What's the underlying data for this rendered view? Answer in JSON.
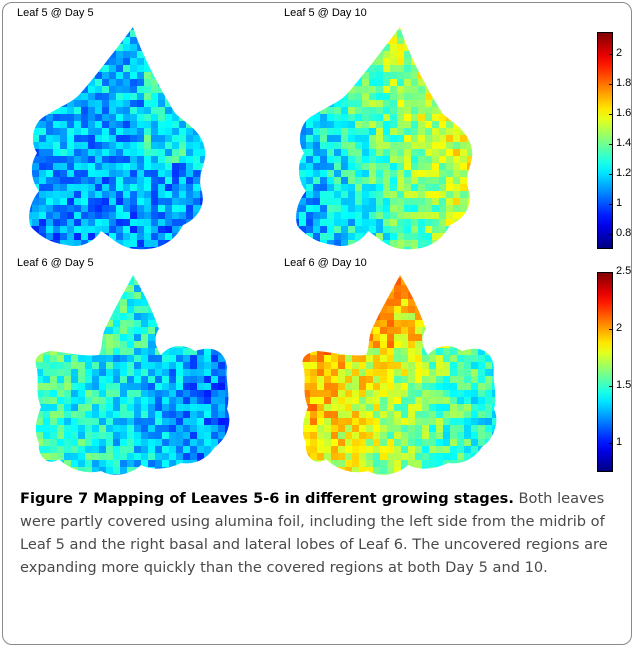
{
  "panels": {
    "top_left_title": "Leaf 5 @ Day 5",
    "top_right_title": "Leaf 5 @ Day 10",
    "bottom_left_title": "Leaf 6 @ Day 5",
    "bottom_right_title": "Leaf 6 @ Day 10"
  },
  "colorbars": {
    "top": {
      "ticks": [
        "2",
        "1.8",
        "1.6",
        "1.4",
        "1.2",
        "1",
        "0.8"
      ],
      "values": [
        2,
        1.8,
        1.6,
        1.4,
        1.2,
        1.0,
        0.8
      ],
      "range": [
        0.7,
        2.15
      ]
    },
    "bottom": {
      "ticks": [
        "2.5",
        "2",
        "1.5",
        "1"
      ],
      "values": [
        2.5,
        2,
        1.5,
        1
      ],
      "range": [
        0.75,
        2.5
      ]
    }
  },
  "caption": {
    "title": "Figure 7 Mapping of Leaves 5-6 in different growing stages",
    "period": ".",
    "body": "Both leaves were partly covered using alumina foil, including the left side from the midrib of Leaf 5 and the right basal and lateral lobes of Leaf 6. The uncovered regions are expanding more quickly than the covered regions at both Day 5 and 10."
  },
  "colormap": "jet"
}
